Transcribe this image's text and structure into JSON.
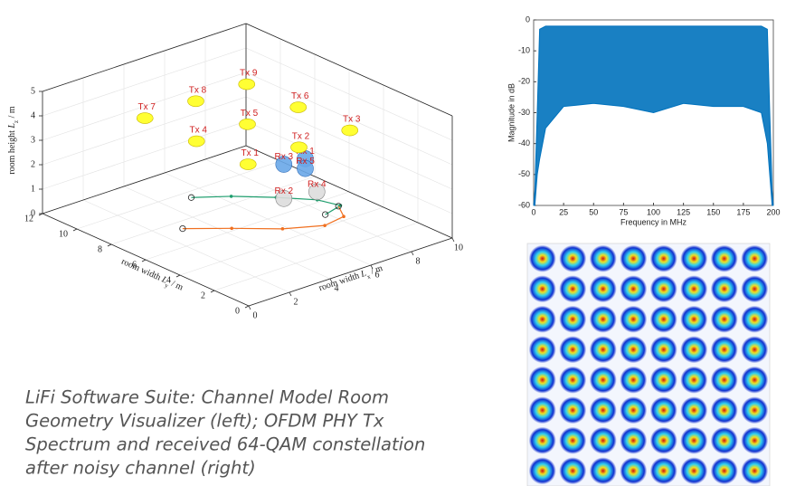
{
  "caption": [
    "LiFi Software Suite: Channel Model Room",
    "Geometry Visualizer (left); OFDM PHY Tx",
    "Spectrum and received 64-QAM constellation",
    "after noisy channel (right)"
  ],
  "chart_data": [
    {
      "type": "scatter3d",
      "xlabel": [
        "room width ",
        "L",
        "x",
        " / m"
      ],
      "ylabel": [
        "room width ",
        "L",
        "y",
        " / m"
      ],
      "zlabel": [
        "room height ",
        "L",
        "z",
        " / m"
      ],
      "xlim": [
        0,
        10
      ],
      "xticks": [
        0,
        2,
        4,
        6,
        8,
        10
      ],
      "ylim": [
        0,
        12
      ],
      "yticks": [
        0,
        2,
        4,
        6,
        8,
        10,
        12
      ],
      "zlim": [
        0,
        5
      ],
      "zticks": [
        0,
        1,
        2,
        3,
        4,
        5
      ],
      "tx_color": "#ffff33",
      "tx": [
        {
          "label": "Tx 1",
          "x": 2.5,
          "y": 3,
          "z": 4.6
        },
        {
          "label": "Tx 2",
          "x": 5,
          "y": 3,
          "z": 4.6
        },
        {
          "label": "Tx 3",
          "x": 7.5,
          "y": 3,
          "z": 4.6
        },
        {
          "label": "Tx 4",
          "x": 2.5,
          "y": 6,
          "z": 4.6
        },
        {
          "label": "Tx 5",
          "x": 5,
          "y": 6,
          "z": 4.6
        },
        {
          "label": "Tx 6",
          "x": 7.5,
          "y": 6,
          "z": 4.6
        },
        {
          "label": "Tx 7",
          "x": 2.5,
          "y": 9,
          "z": 4.6
        },
        {
          "label": "Tx 8",
          "x": 5,
          "y": 9,
          "z": 4.6
        },
        {
          "label": "Tx 9",
          "x": 7.5,
          "y": 9,
          "z": 4.6
        }
      ],
      "rx": [
        {
          "label": "Rx 1",
          "x": 7,
          "y": 5,
          "z": 2.8
        },
        {
          "label": "Rx 2",
          "x": 6.2,
          "y": 5.3,
          "z": 1.3
        },
        {
          "label": "Rx 3",
          "x": 6.2,
          "y": 5.3,
          "z": 2.7
        },
        {
          "label": "Rx 4",
          "x": 7.4,
          "y": 4.8,
          "z": 1.4
        },
        {
          "label": "Rx 5",
          "x": 7,
          "y": 5,
          "z": 2.4
        }
      ],
      "paths": [
        {
          "color": "#1f9e6e",
          "x": [
            5.2,
            6.4,
            7.6,
            8.6,
            8.9,
            7.9
          ],
          "y": [
            9.5,
            8.6,
            7.4,
            6.2,
            5.2,
            4.9
          ],
          "z": [
            0,
            0,
            0,
            0,
            0,
            0
          ]
        },
        {
          "color": "#f07020",
          "x": [
            3,
            4.4,
            5.8,
            7.2,
            8.3,
            8.8
          ],
          "y": [
            7.4,
            6.2,
            4.9,
            4.1,
            4.3,
            5.2
          ],
          "z": [
            0,
            0,
            0,
            0,
            0,
            0
          ]
        }
      ]
    },
    {
      "type": "area",
      "xlabel": "Frequency in MHz",
      "ylabel": "Magnitude in dB",
      "xlim": [
        0,
        200
      ],
      "xticks": [
        0,
        25,
        50,
        75,
        100,
        125,
        150,
        175,
        200
      ],
      "ylim": [
        -60,
        0
      ],
      "yticks": [
        -60,
        -50,
        -40,
        -30,
        -20,
        -10,
        0
      ],
      "x": [
        0,
        1,
        3,
        5,
        10,
        25,
        50,
        75,
        100,
        125,
        150,
        175,
        190,
        195,
        197,
        199,
        200
      ],
      "series": [
        {
          "color": "#0072bd",
          "values": [
            -60,
            -55,
            -30,
            -3,
            -2,
            -2,
            -2,
            -2,
            -2,
            -2,
            -2,
            -2,
            -2,
            -3,
            -30,
            -55,
            -60
          ]
        },
        {
          "color": "#0072bd",
          "values": [
            -60,
            -60,
            -50,
            -45,
            -35,
            -28,
            -27,
            -28,
            -30,
            -27,
            -28,
            -28,
            -30,
            -40,
            -50,
            -60,
            -60
          ]
        }
      ]
    },
    {
      "type": "constellation",
      "levels": [
        -7,
        -5,
        -3,
        -1,
        1,
        3,
        5,
        7
      ],
      "xlim": [
        -8,
        8
      ],
      "ylim": [
        -8,
        8
      ]
    }
  ]
}
